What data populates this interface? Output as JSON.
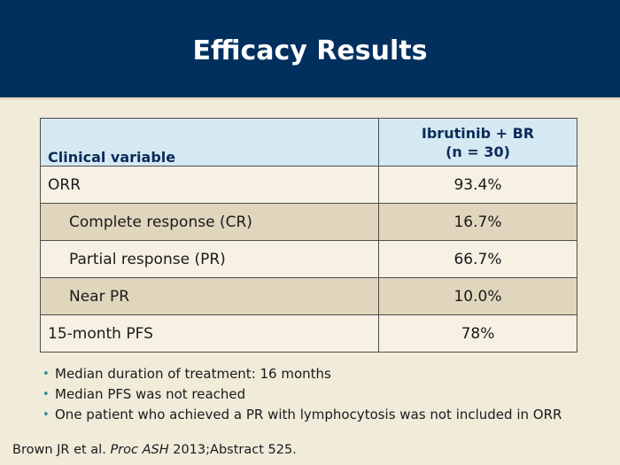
{
  "slide": {
    "title": "Efficacy Results"
  },
  "table": {
    "headers": {
      "variable": "Clinical variable",
      "treatment_line1": "Ibrutinib + BR",
      "treatment_line2": "(n = 30)"
    },
    "rows": [
      {
        "label": "ORR",
        "value": "93.4%",
        "indent": false,
        "shaded": false
      },
      {
        "label": "Complete response (CR)",
        "value": "16.7%",
        "indent": true,
        "shaded": true
      },
      {
        "label": "Partial response (PR)",
        "value": "66.7%",
        "indent": true,
        "shaded": false
      },
      {
        "label": "Near PR",
        "value": "10.0%",
        "indent": true,
        "shaded": true
      },
      {
        "label": "15-month PFS",
        "value": "78%",
        "indent": false,
        "shaded": false
      }
    ]
  },
  "bullets": [
    "Median duration of treatment: 16 months",
    "Median PFS was not reached",
    "One patient who achieved a PR with lymphocytosis was not included in ORR"
  ],
  "citation": {
    "authors": "Brown JR et al.",
    "journal": "Proc ASH",
    "details": "2013;Abstract 525."
  },
  "colors": {
    "header_bg": "#02305e",
    "page_bg": "#f1ebda",
    "table_header_bg": "#d5e9f3",
    "row_shaded_bg": "#e0d6bd",
    "bullet_color": "#2f8c8a"
  }
}
